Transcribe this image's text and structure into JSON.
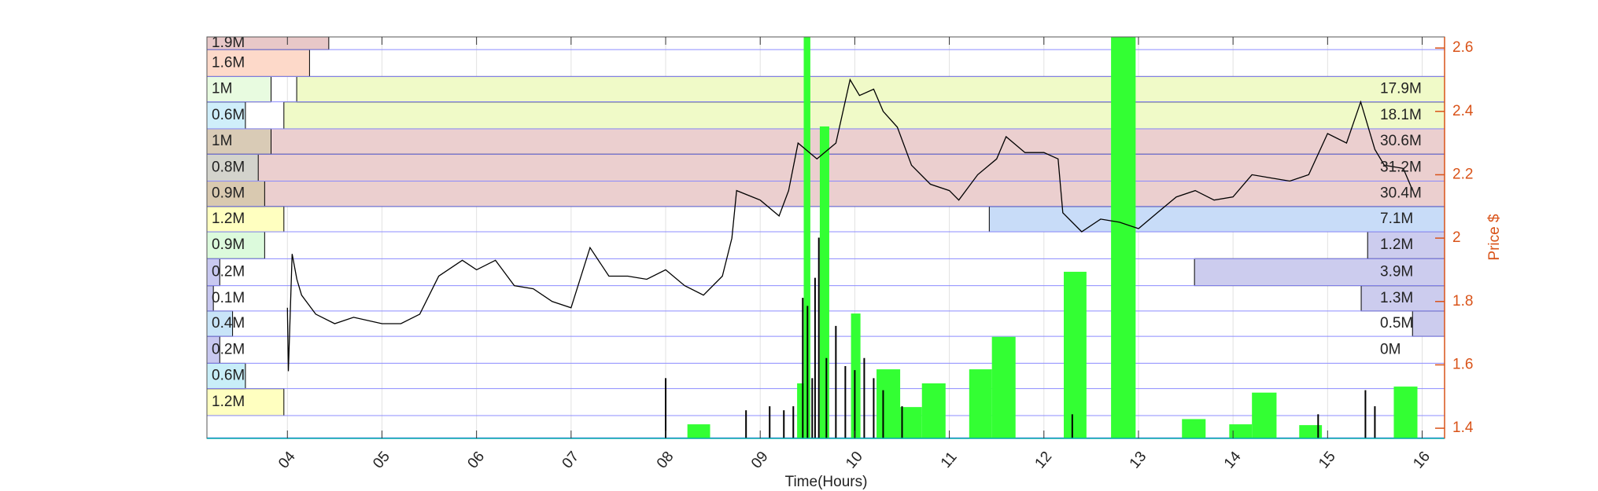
{
  "chart_data": {
    "type": "line",
    "x_label": "Time(Hours)",
    "y_label": "Price $",
    "xlim": [
      3.149,
      16.237
    ],
    "xticks": [
      {
        "value": 4,
        "label": "04"
      },
      {
        "value": 5,
        "label": "05"
      },
      {
        "value": 6,
        "label": "06"
      },
      {
        "value": 7,
        "label": "07"
      },
      {
        "value": 8,
        "label": "08"
      },
      {
        "value": 9,
        "label": "09"
      },
      10,
      11,
      12,
      13,
      14,
      15,
      16
    ],
    "ylim": [
      1.368,
      2.635
    ],
    "yticks": [
      1.4,
      1.6,
      1.8,
      2,
      2.2,
      2.4,
      2.6
    ],
    "grid": true,
    "axis_color": "#d95319",
    "series": [
      {
        "color": "#000000",
        "x": [
          4.0,
          4.01,
          4.05,
          4.1,
          4.15,
          4.3,
          4.5,
          4.7,
          5.0,
          5.2,
          5.4,
          5.6,
          5.85,
          6.0,
          6.2,
          6.4,
          6.6,
          6.8,
          7.0,
          7.2,
          7.4,
          7.6,
          7.8,
          8.0,
          8.2,
          8.4,
          8.6,
          8.7,
          8.75,
          9.0,
          9.2,
          9.3,
          9.4,
          9.6,
          9.8,
          9.95,
          10.05,
          10.2,
          10.3,
          10.45,
          10.6,
          10.8,
          11.0,
          11.1,
          11.3,
          11.5,
          11.6,
          11.8,
          12.0,
          12.15,
          12.2,
          12.4,
          12.6,
          12.8,
          13.0,
          13.2,
          13.4,
          13.6,
          13.8,
          14.0,
          14.2,
          14.4,
          14.6,
          14.8,
          15.0,
          15.2,
          15.35,
          15.5,
          15.6,
          15.8,
          15.9
        ],
        "values": [
          1.78,
          1.58,
          1.95,
          1.87,
          1.82,
          1.76,
          1.73,
          1.75,
          1.73,
          1.73,
          1.76,
          1.88,
          1.93,
          1.9,
          1.93,
          1.85,
          1.84,
          1.8,
          1.78,
          1.97,
          1.88,
          1.88,
          1.87,
          1.9,
          1.85,
          1.82,
          1.88,
          2.0,
          2.15,
          2.12,
          2.07,
          2.15,
          2.3,
          2.25,
          2.3,
          2.5,
          2.45,
          2.47,
          2.4,
          2.35,
          2.23,
          2.17,
          2.15,
          2.12,
          2.2,
          2.25,
          2.32,
          2.27,
          2.27,
          2.25,
          2.08,
          2.02,
          2.06,
          2.05,
          2.03,
          2.08,
          2.13,
          2.15,
          2.12,
          2.13,
          2.2,
          2.19,
          2.18,
          2.2,
          2.33,
          2.3,
          2.43,
          2.28,
          2.23,
          2.22,
          2.15
        ]
      }
    ],
    "volume": {
      "vlim": [
        0,
        100
      ],
      "bars": {
        "color": "#33ff33",
        "start": [
          8.23,
          9.39,
          9.46,
          9.63,
          9.96,
          10.23,
          10.48,
          10.71,
          11.21,
          11.45,
          12.21,
          12.71,
          13.46,
          13.96,
          14.2,
          14.7,
          15.7
        ],
        "end": [
          8.47,
          9.48,
          9.53,
          9.73,
          10.06,
          10.48,
          10.71,
          10.96,
          11.45,
          11.7,
          12.45,
          12.97,
          13.71,
          14.2,
          14.46,
          14.94,
          15.95
        ],
        "values": [
          3.5,
          13.7,
          100,
          77.7,
          31.1,
          17.2,
          7.8,
          13.7,
          17.2,
          25.3,
          41.5,
          100,
          4.8,
          3.5,
          11.4,
          3.3,
          12.9
        ]
      },
      "spikes": {
        "color": "#000000",
        "x": [
          8.0,
          8.85,
          9.1,
          9.25,
          9.35,
          9.45,
          9.5,
          9.55,
          9.58,
          9.62,
          9.7,
          9.8,
          9.9,
          10.0,
          10.1,
          10.2,
          10.3,
          10.5,
          12.3,
          14.9,
          15.4,
          15.5
        ],
        "values": [
          15,
          7,
          8,
          7,
          8,
          35,
          33,
          15,
          40,
          50,
          20,
          28,
          18,
          17,
          20,
          15,
          12,
          8,
          6,
          6,
          12,
          8
        ]
      }
    },
    "price_bins": {
      "color": "#8c8cff",
      "edges": [
        1.37,
        1.44,
        1.525,
        1.605,
        1.69,
        1.77,
        1.85,
        1.935,
        2.02,
        2.1,
        2.18,
        2.265,
        2.345,
        2.43,
        2.51,
        2.595,
        2.635
      ]
    },
    "profile": {
      "xlim": [
        0,
        19.3
      ],
      "left": {
        "values": [
          null,
          1.2,
          0.6,
          0.2,
          0.4,
          0.1,
          0.2,
          0.9,
          1.2,
          0.9,
          0.8,
          1,
          0.6,
          1,
          1.6,
          1.9
        ],
        "value_labels": [
          null,
          "1.2M",
          "0.6M",
          "0.2M",
          "0.4M",
          "0.1M",
          "0.2M",
          "0.9M",
          "1.2M",
          "0.9M",
          "0.8M",
          "1M",
          "0.6M",
          "1M",
          "1.6M",
          "1.9M"
        ],
        "colors": [
          null,
          "#ffffc0",
          "#c8eef8",
          "#c8c8f0",
          "#c8e4f8",
          "#c8c8f0",
          "#c8c8f0",
          "#dcfadc",
          "#ffffc0",
          "#d9c9b0",
          "#d3d3cc",
          "#d9cbb6",
          "#cfeefa",
          "#e8fbe0",
          "#fdd9c9",
          "#e8c8c8"
        ]
      },
      "right": {
        "values": [
          null,
          null,
          null,
          0,
          0.5,
          1.3,
          3.9,
          1.2,
          7.1,
          30.4,
          31.2,
          30.6,
          18.1,
          17.9,
          null,
          null
        ],
        "value_labels": [
          null,
          null,
          null,
          "0M",
          "0.5M",
          "1.3M",
          "3.9M",
          "1.2M",
          "7.1M",
          "30.4M",
          "31.2M",
          "30.6M",
          "18.1M",
          "17.9M",
          null,
          null
        ],
        "colors": [
          null,
          null,
          null,
          "#ccccee",
          "#ccccee",
          "#ccccee",
          "#ccccee",
          "#ccccee",
          "#c8dcf8",
          "#ebcfcf",
          "#ebcfcf",
          "#ebcfcf",
          "#f0fac8",
          "#f0fac8",
          null,
          null
        ]
      }
    }
  }
}
